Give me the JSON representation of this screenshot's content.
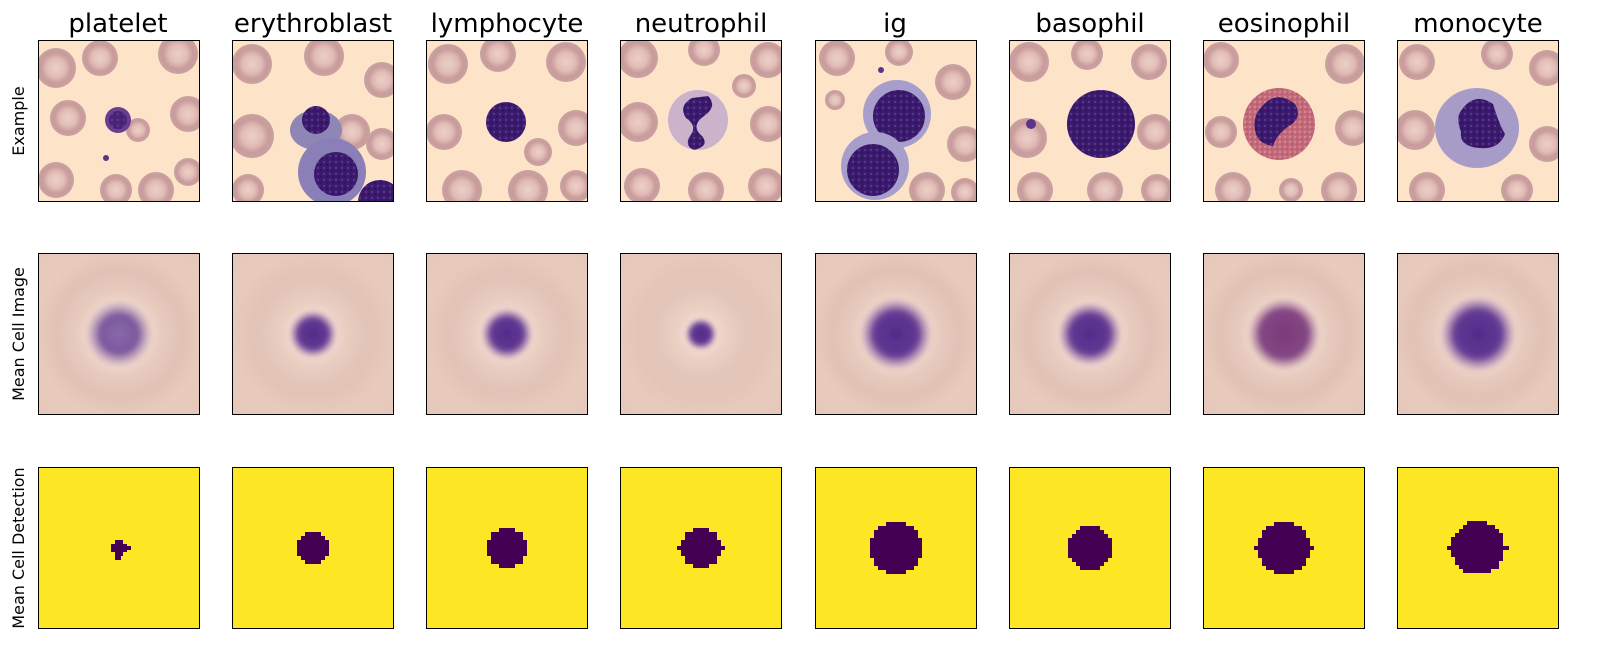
{
  "figure": {
    "columns": [
      {
        "label": "platelet"
      },
      {
        "label": "erythroblast"
      },
      {
        "label": "lymphocyte"
      },
      {
        "label": "neutrophil"
      },
      {
        "label": "ig"
      },
      {
        "label": "basophil"
      },
      {
        "label": "eosinophil"
      },
      {
        "label": "monocyte"
      }
    ],
    "rows": [
      {
        "label": "Example"
      },
      {
        "label": "Mean Cell Image"
      },
      {
        "label": "Mean Cell Detection"
      }
    ],
    "colors": {
      "smear_background": "#fde3c8",
      "rbc": "#d4a7a6",
      "rbc_pale_center": "#e9c9c3",
      "mean_background": "#e6c8bb",
      "nucleus_purple": "#4a2380",
      "eosinophil_nucleus": "#7a3a78",
      "mask_yellow": "#fde725",
      "mask_dark": "#440154"
    },
    "cell_types": [
      {
        "name": "platelet"
      },
      {
        "name": "erythroblast"
      },
      {
        "name": "lymphocyte"
      },
      {
        "name": "neutrophil"
      },
      {
        "name": "ig"
      },
      {
        "name": "basophil"
      },
      {
        "name": "eosinophil"
      },
      {
        "name": "monocyte"
      }
    ]
  }
}
